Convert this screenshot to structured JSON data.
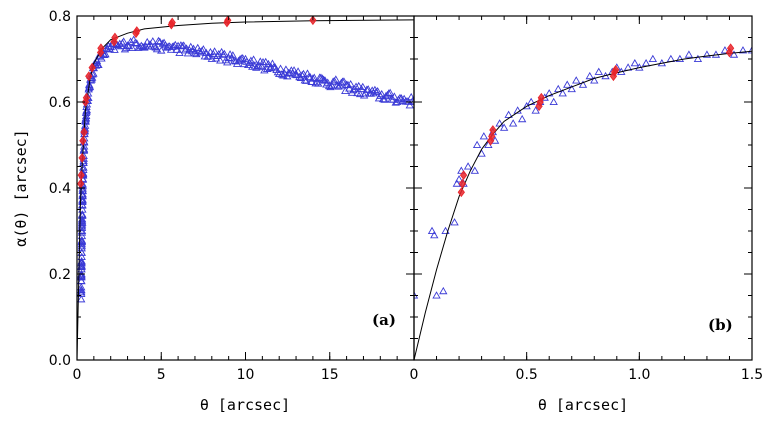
{
  "chart_data": [
    {
      "type": "scatter",
      "panel_label": "(a)",
      "xlabel": "θ [arcsec]",
      "ylabel": "α(θ) [arcsec]",
      "xlim": [
        0,
        20
      ],
      "ylim": [
        0.0,
        0.8
      ],
      "xticks": [
        0,
        5,
        10,
        15
      ],
      "yticks": [
        0.0,
        0.2,
        0.4,
        0.6,
        0.8
      ],
      "series": [
        {
          "name": "blue triangles",
          "marker": "triangle",
          "color": "#3a3ad6",
          "shape": "dense band",
          "band_center": [
            [
              0.25,
              0.15
            ],
            [
              0.3,
              0.31
            ],
            [
              0.35,
              0.42
            ],
            [
              0.45,
              0.53
            ],
            [
              0.6,
              0.6
            ],
            [
              0.8,
              0.65
            ],
            [
              1.0,
              0.68
            ],
            [
              1.5,
              0.71
            ],
            [
              2.0,
              0.725
            ],
            [
              3.0,
              0.735
            ],
            [
              4.0,
              0.735
            ],
            [
              5.0,
              0.73
            ],
            [
              6.0,
              0.725
            ],
            [
              8.0,
              0.71
            ],
            [
              10.0,
              0.695
            ],
            [
              12.0,
              0.675
            ],
            [
              14.0,
              0.655
            ],
            [
              16.0,
              0.635
            ],
            [
              18.0,
              0.615
            ],
            [
              20.0,
              0.6
            ]
          ]
        },
        {
          "name": "red diamonds",
          "marker": "diamond",
          "color": "#e8242a",
          "points": [
            [
              0.22,
              0.41
            ],
            [
              0.25,
              0.43
            ],
            [
              0.3,
              0.47
            ],
            [
              0.35,
              0.51
            ],
            [
              0.42,
              0.53
            ],
            [
              0.5,
              0.6
            ],
            [
              0.56,
              0.61
            ],
            [
              0.7,
              0.66
            ],
            [
              0.9,
              0.68
            ],
            [
              1.4,
              0.715
            ],
            [
              1.42,
              0.725
            ],
            [
              2.2,
              0.74
            ],
            [
              2.25,
              0.75
            ],
            [
              3.5,
              0.76
            ],
            [
              3.55,
              0.765
            ],
            [
              5.6,
              0.78
            ],
            [
              5.65,
              0.785
            ],
            [
              8.9,
              0.785
            ],
            [
              8.95,
              0.79
            ],
            [
              14.0,
              0.79
            ]
          ]
        },
        {
          "name": "model curve",
          "marker": "line",
          "color": "#000000",
          "points": [
            [
              0.0,
              0.0
            ],
            [
              0.1,
              0.18
            ],
            [
              0.2,
              0.36
            ],
            [
              0.3,
              0.45
            ],
            [
              0.5,
              0.58
            ],
            [
              0.8,
              0.66
            ],
            [
              1.0,
              0.69
            ],
            [
              1.5,
              0.725
            ],
            [
              2.0,
              0.745
            ],
            [
              3.0,
              0.76
            ],
            [
              4.0,
              0.77
            ],
            [
              6.0,
              0.778
            ],
            [
              8.0,
              0.783
            ],
            [
              10.0,
              0.786
            ],
            [
              14.0,
              0.789
            ],
            [
              20.0,
              0.791
            ]
          ]
        }
      ]
    },
    {
      "type": "scatter",
      "panel_label": "(b)",
      "xlabel": "θ [arcsec]",
      "ylabel": "",
      "xlim": [
        0,
        1.5
      ],
      "ylim": [
        0.0,
        0.8
      ],
      "xticks": [
        0,
        0.5,
        1.0,
        1.5
      ],
      "xtick_labels": [
        "0",
        "0.5",
        "1.0",
        "1.5"
      ],
      "series": [
        {
          "name": "blue triangles",
          "marker": "triangle",
          "color": "#3a3ad6",
          "points": [
            [
              0.0,
              0.15
            ],
            [
              0.08,
              0.3
            ],
            [
              0.09,
              0.29
            ],
            [
              0.1,
              0.15
            ],
            [
              0.13,
              0.16
            ],
            [
              0.14,
              0.3
            ],
            [
              0.18,
              0.32
            ],
            [
              0.19,
              0.41
            ],
            [
              0.2,
              0.42
            ],
            [
              0.21,
              0.44
            ],
            [
              0.22,
              0.41
            ],
            [
              0.24,
              0.45
            ],
            [
              0.27,
              0.44
            ],
            [
              0.28,
              0.5
            ],
            [
              0.3,
              0.48
            ],
            [
              0.31,
              0.52
            ],
            [
              0.33,
              0.5
            ],
            [
              0.35,
              0.53
            ],
            [
              0.36,
              0.51
            ],
            [
              0.38,
              0.55
            ],
            [
              0.4,
              0.54
            ],
            [
              0.42,
              0.57
            ],
            [
              0.44,
              0.55
            ],
            [
              0.46,
              0.58
            ],
            [
              0.48,
              0.56
            ],
            [
              0.5,
              0.59
            ],
            [
              0.52,
              0.6
            ],
            [
              0.54,
              0.58
            ],
            [
              0.56,
              0.6
            ],
            [
              0.58,
              0.61
            ],
            [
              0.6,
              0.62
            ],
            [
              0.62,
              0.6
            ],
            [
              0.64,
              0.63
            ],
            [
              0.66,
              0.62
            ],
            [
              0.68,
              0.64
            ],
            [
              0.7,
              0.63
            ],
            [
              0.72,
              0.65
            ],
            [
              0.75,
              0.64
            ],
            [
              0.78,
              0.66
            ],
            [
              0.8,
              0.65
            ],
            [
              0.82,
              0.67
            ],
            [
              0.85,
              0.66
            ],
            [
              0.88,
              0.67
            ],
            [
              0.9,
              0.68
            ],
            [
              0.92,
              0.67
            ],
            [
              0.95,
              0.68
            ],
            [
              0.98,
              0.69
            ],
            [
              1.0,
              0.68
            ],
            [
              1.03,
              0.69
            ],
            [
              1.06,
              0.7
            ],
            [
              1.1,
              0.69
            ],
            [
              1.14,
              0.7
            ],
            [
              1.18,
              0.7
            ],
            [
              1.22,
              0.71
            ],
            [
              1.26,
              0.7
            ],
            [
              1.3,
              0.71
            ],
            [
              1.34,
              0.71
            ],
            [
              1.38,
              0.72
            ],
            [
              1.42,
              0.71
            ],
            [
              1.46,
              0.72
            ],
            [
              1.5,
              0.72
            ]
          ]
        },
        {
          "name": "red diamonds",
          "marker": "diamond",
          "color": "#e8242a",
          "points": [
            [
              0.21,
              0.39
            ],
            [
              0.215,
              0.41
            ],
            [
              0.22,
              0.43
            ],
            [
              0.34,
              0.51
            ],
            [
              0.345,
              0.52
            ],
            [
              0.35,
              0.535
            ],
            [
              0.555,
              0.59
            ],
            [
              0.56,
              0.6
            ],
            [
              0.565,
              0.61
            ],
            [
              0.885,
              0.66
            ],
            [
              0.89,
              0.67
            ],
            [
              0.895,
              0.675
            ],
            [
              1.4,
              0.715
            ],
            [
              1.405,
              0.725
            ]
          ]
        },
        {
          "name": "model curve",
          "marker": "line",
          "color": "#000000",
          "points": [
            [
              0.0,
              0.0
            ],
            [
              0.05,
              0.11
            ],
            [
              0.1,
              0.21
            ],
            [
              0.15,
              0.3
            ],
            [
              0.2,
              0.38
            ],
            [
              0.25,
              0.44
            ],
            [
              0.3,
              0.49
            ],
            [
              0.35,
              0.525
            ],
            [
              0.4,
              0.555
            ],
            [
              0.5,
              0.59
            ],
            [
              0.6,
              0.615
            ],
            [
              0.7,
              0.635
            ],
            [
              0.8,
              0.655
            ],
            [
              0.9,
              0.668
            ],
            [
              1.0,
              0.68
            ],
            [
              1.1,
              0.69
            ],
            [
              1.2,
              0.7
            ],
            [
              1.3,
              0.707
            ],
            [
              1.4,
              0.713
            ],
            [
              1.5,
              0.718
            ]
          ]
        }
      ]
    }
  ]
}
